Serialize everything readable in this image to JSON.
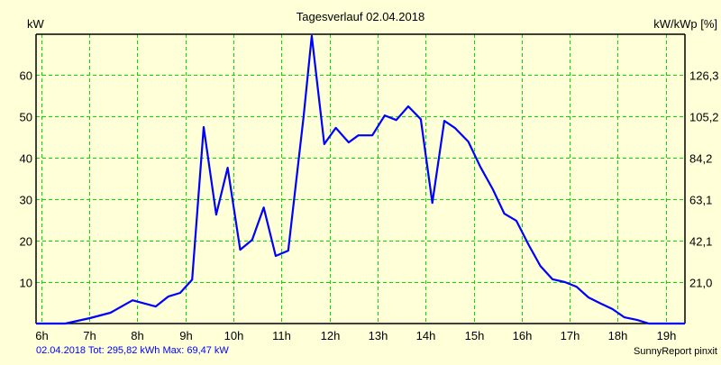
{
  "chart_data": {
    "type": "line",
    "title": "Tagesverlauf 02.04.2018",
    "ylabel": "kW",
    "y2label": "kW/kWp [%]",
    "xlim": [
      5.89,
      19.4
    ],
    "ylim": [
      0,
      69.8
    ],
    "grid": true,
    "x_ticks": [
      6,
      7,
      8,
      9,
      10,
      11,
      12,
      13,
      14,
      15,
      16,
      17,
      18,
      19
    ],
    "x_tick_labels": [
      "6h",
      "7h",
      "8h",
      "9h",
      "10h",
      "11h",
      "12h",
      "13h",
      "14h",
      "15h",
      "16h",
      "17h",
      "18h",
      "19h"
    ],
    "y_ticks": [
      10,
      20,
      30,
      40,
      50,
      60
    ],
    "y_tick_labels": [
      "10",
      "20",
      "30",
      "40",
      "50",
      "60"
    ],
    "y2_tick_labels": [
      "21,0",
      "42,1",
      "63,1",
      "84,2",
      "105,2",
      "126,3"
    ],
    "line_color": "#0000ff",
    "grid_color": "#00e000",
    "series": [
      {
        "name": "kW",
        "x": [
          5.89,
          6.5,
          7.01,
          7.44,
          7.9,
          8.38,
          8.64,
          8.89,
          9.14,
          9.38,
          9.64,
          9.88,
          10.14,
          10.39,
          10.63,
          10.88,
          11.14,
          11.46,
          11.63,
          11.89,
          12.13,
          12.4,
          12.6,
          12.89,
          13.15,
          13.39,
          13.64,
          13.9,
          14.14,
          14.39,
          14.61,
          14.89,
          15.14,
          15.4,
          15.64,
          15.89,
          16.15,
          16.39,
          16.64,
          16.9,
          17.14,
          17.39,
          17.65,
          17.89,
          18.14,
          18.4,
          18.65,
          19.4
        ],
        "y": [
          0,
          0,
          1.3,
          2.6,
          5.6,
          4.1,
          6.5,
          7.4,
          10.6,
          47.4,
          26.3,
          37.6,
          17.8,
          20.2,
          28,
          16.3,
          17.6,
          49.8,
          69.4,
          43.3,
          47.2,
          43.7,
          45.4,
          45.4,
          50.2,
          49.1,
          52.4,
          49.3,
          29.1,
          48.9,
          47.2,
          43.9,
          37.8,
          32.4,
          26.5,
          24.8,
          18.9,
          13.9,
          10.7,
          10,
          8.9,
          6.3,
          4.8,
          3.5,
          1.5,
          0.9,
          0,
          0
        ]
      }
    ]
  },
  "footer": {
    "summary": "02.04.2018 Tot: 295,82 kWh Max: 69,47 kW",
    "credit": "SunnyReport pinxit"
  }
}
